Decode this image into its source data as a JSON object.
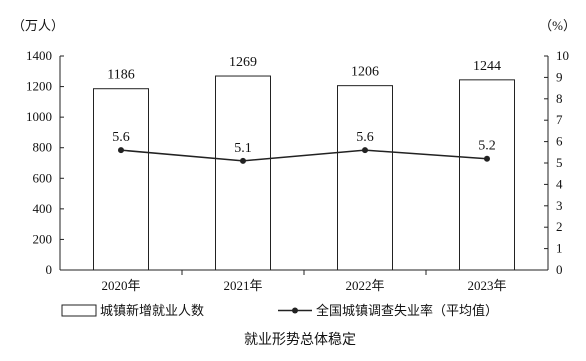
{
  "chart_data": {
    "type": "bar+line",
    "categories": [
      "2020年",
      "2021年",
      "2022年",
      "2023年"
    ],
    "series": [
      {
        "name": "城镇新增就业人数",
        "type": "bar",
        "axis": "left",
        "values": [
          1186,
          1269,
          1206,
          1244
        ]
      },
      {
        "name": "全国城镇调查失业率（平均值）",
        "type": "line",
        "axis": "right",
        "values": [
          5.6,
          5.1,
          5.6,
          5.2
        ]
      }
    ],
    "left_axis": {
      "unit": "（万人）",
      "ylim": [
        0,
        1400
      ],
      "ticks": [
        "0",
        "200",
        "400",
        "600",
        "800",
        "1000",
        "1200",
        "1400"
      ]
    },
    "right_axis": {
      "unit": "（%）",
      "ylim": [
        0,
        10
      ],
      "ticks": [
        "0",
        "1",
        "2",
        "3",
        "4",
        "5",
        "6",
        "7",
        "8",
        "9",
        "10"
      ]
    },
    "data_labels_bar": [
      "1186",
      "1269",
      "1206",
      "1244"
    ],
    "data_labels_line": [
      "5.6",
      "5.1",
      "5.6",
      "5.2"
    ],
    "caption": "就业形势总体稳定",
    "grid": false,
    "legend_position": "bottom",
    "colors": {
      "bar_fill": "#ffffff",
      "stroke": "#222222",
      "line": "#222222"
    }
  }
}
